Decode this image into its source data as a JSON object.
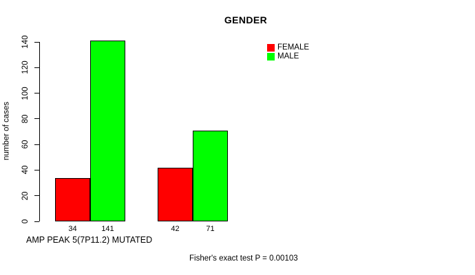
{
  "chart_data": {
    "type": "bar",
    "title": "GENDER",
    "ylabel": "number of cases",
    "xlabel": "AMP PEAK 5(7P11.2) MUTATED",
    "annotation": "Fisher's exact test P = 0.00103",
    "ylim": [
      0,
      140
    ],
    "yticks": [
      0,
      20,
      40,
      60,
      80,
      100,
      120,
      140
    ],
    "grid": false,
    "legend_position": "top-right",
    "series": [
      {
        "name": "FEMALE",
        "color": "#ff0000",
        "values": [
          34,
          42
        ]
      },
      {
        "name": "MALE",
        "color": "#00ff00",
        "values": [
          141,
          71
        ]
      }
    ],
    "bar_value_labels": [
      "34",
      "141",
      "42",
      "71"
    ]
  },
  "colors": {
    "background": "#ffffff",
    "axis": "#000000",
    "text": "#000000",
    "bar_border": "#000000",
    "female": "#ff0000",
    "male": "#00ff00"
  }
}
